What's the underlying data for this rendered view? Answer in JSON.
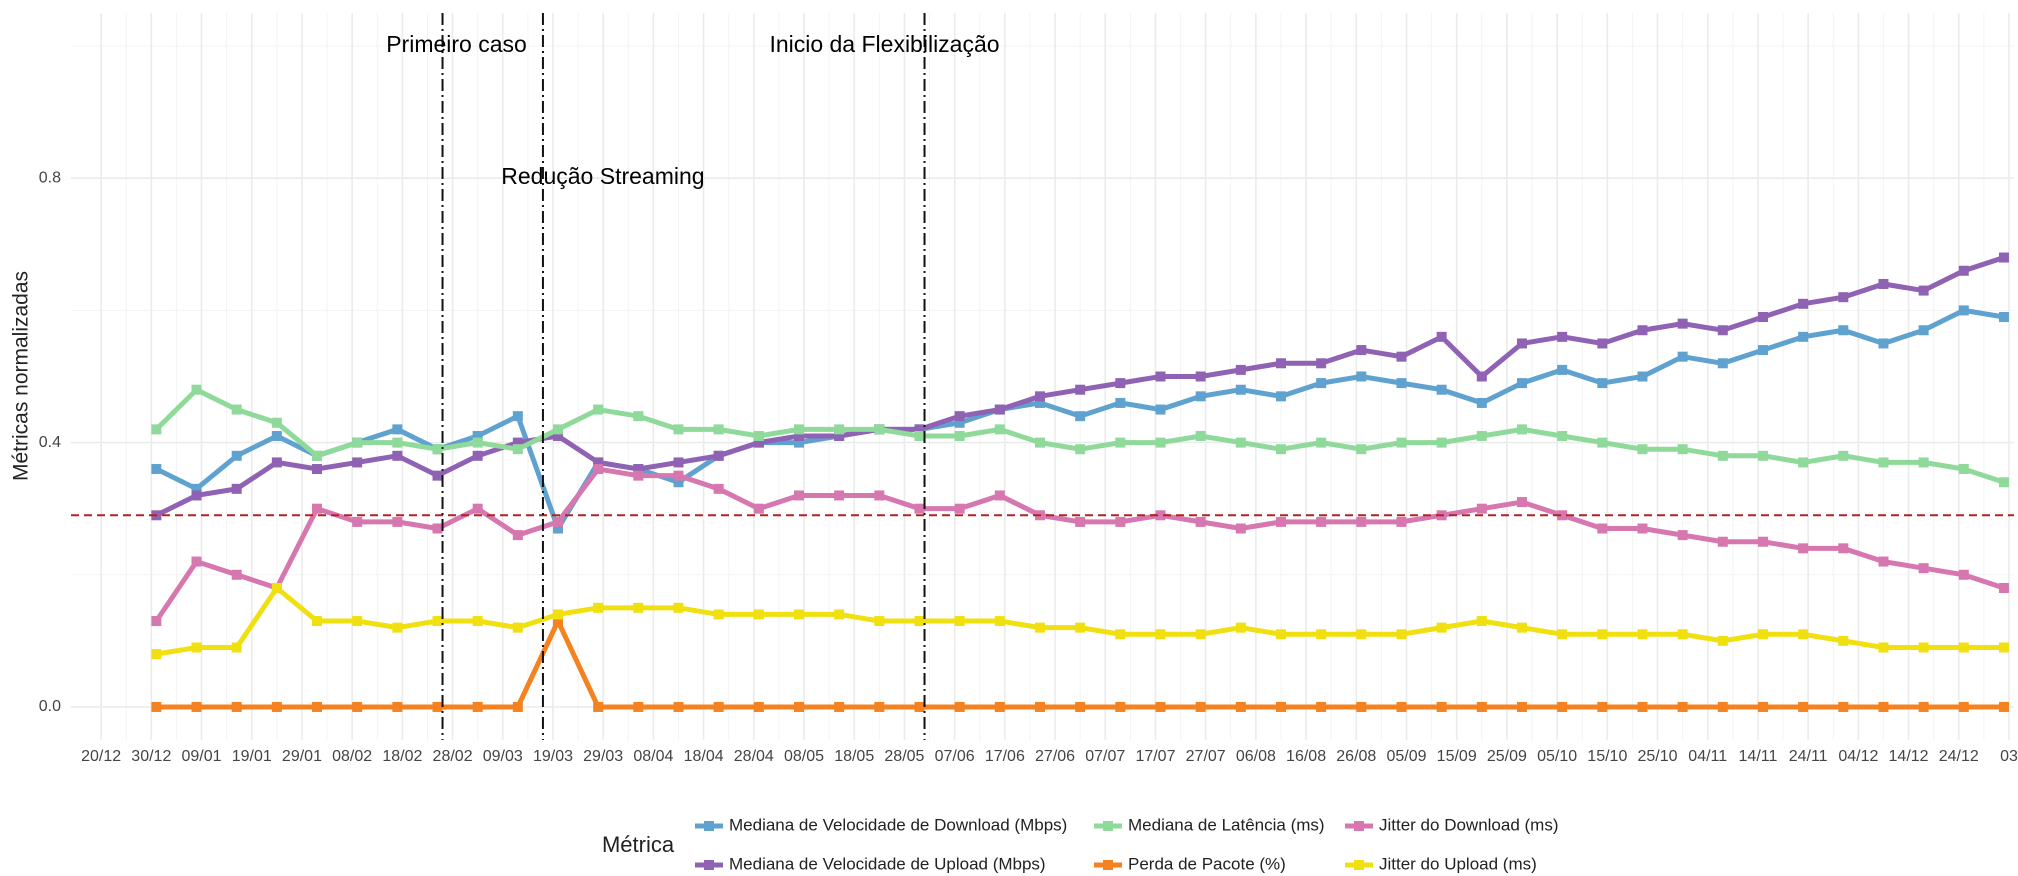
{
  "chart_data": {
    "type": "line",
    "ylabel": "Métricas normalizadas",
    "legend_title": "Métrica",
    "legend_position": "bottom",
    "grid": true,
    "xlim": [
      -6,
      381
    ],
    "ylim": [
      -0.05,
      1.05
    ],
    "yticks": [
      {
        "value": 0,
        "label": "0.0"
      },
      0.4,
      0.8
    ],
    "xticks": [
      {
        "value": 0,
        "label": "20/12"
      },
      {
        "value": 10,
        "label": "30/12"
      },
      {
        "value": 20,
        "label": "09/01"
      },
      {
        "value": 30,
        "label": "19/01"
      },
      {
        "value": 40,
        "label": "29/01"
      },
      {
        "value": 50,
        "label": "08/02"
      },
      {
        "value": 60,
        "label": "18/02"
      },
      {
        "value": 70,
        "label": "28/02"
      },
      {
        "value": 80,
        "label": "09/03"
      },
      {
        "value": 90,
        "label": "19/03"
      },
      {
        "value": 100,
        "label": "29/03"
      },
      {
        "value": 110,
        "label": "08/04"
      },
      {
        "value": 120,
        "label": "18/04"
      },
      {
        "value": 130,
        "label": "28/04"
      },
      {
        "value": 140,
        "label": "08/05"
      },
      {
        "value": 150,
        "label": "18/05"
      },
      {
        "value": 160,
        "label": "28/05"
      },
      {
        "value": 170,
        "label": "07/06"
      },
      {
        "value": 180,
        "label": "17/06"
      },
      {
        "value": 190,
        "label": "27/06"
      },
      {
        "value": 200,
        "label": "07/07"
      },
      {
        "value": 210,
        "label": "17/07"
      },
      {
        "value": 220,
        "label": "27/07"
      },
      {
        "value": 230,
        "label": "06/08"
      },
      {
        "value": 240,
        "label": "16/08"
      },
      {
        "value": 250,
        "label": "26/08"
      },
      {
        "value": 260,
        "label": "05/09"
      },
      {
        "value": 270,
        "label": "15/09"
      },
      {
        "value": 280,
        "label": "25/09"
      },
      {
        "value": 290,
        "label": "05/10"
      },
      {
        "value": 300,
        "label": "15/10"
      },
      {
        "value": 310,
        "label": "25/10"
      },
      {
        "value": 320,
        "label": "04/11"
      },
      {
        "value": 330,
        "label": "14/11"
      },
      {
        "value": 340,
        "label": "24/11"
      },
      {
        "value": 350,
        "label": "04/12"
      },
      {
        "value": 360,
        "label": "14/12"
      },
      {
        "value": 370,
        "label": "24/12"
      },
      {
        "value": 380,
        "label": "03"
      }
    ],
    "vlines": [
      {
        "x": 68,
        "label": "Primeiro caso"
      },
      {
        "x": 88,
        "label": "Redução Streaming"
      },
      {
        "x": 164,
        "label": "Inicio da Flexibilização"
      }
    ],
    "hline": {
      "y": 0.29,
      "color": "#b22222"
    },
    "x": [
      11,
      19,
      27,
      35,
      43,
      51,
      59,
      67,
      75,
      83,
      91,
      99,
      107,
      115,
      123,
      131,
      139,
      147,
      155,
      163,
      171,
      179,
      187,
      195,
      203,
      211,
      219,
      227,
      235,
      243,
      251,
      259,
      267,
      275,
      283,
      291,
      299,
      307,
      315,
      323,
      331,
      339,
      347,
      355,
      363,
      371,
      379
    ],
    "series": [
      {
        "name": "Mediana de Velocidade de Download (Mbps)",
        "color": "#5fa2d0",
        "values": [
          0.36,
          0.33,
          0.38,
          0.41,
          0.38,
          0.4,
          0.42,
          0.39,
          0.41,
          0.44,
          0.27,
          0.37,
          0.36,
          0.34,
          0.38,
          0.4,
          0.4,
          0.41,
          0.42,
          0.42,
          0.43,
          0.45,
          0.46,
          0.44,
          0.46,
          0.45,
          0.47,
          0.48,
          0.47,
          0.49,
          0.5,
          0.49,
          0.48,
          0.46,
          0.49,
          0.51,
          0.49,
          0.5,
          0.53,
          0.52,
          0.54,
          0.56,
          0.57,
          0.55,
          0.57,
          0.6,
          0.59
        ]
      },
      {
        "name": "Mediana de Velocidade de Upload (Mbps)",
        "color": "#8f62b3",
        "values": [
          0.29,
          0.32,
          0.33,
          0.37,
          0.36,
          0.37,
          0.38,
          0.35,
          0.38,
          0.4,
          0.41,
          0.37,
          0.36,
          0.37,
          0.38,
          0.4,
          0.41,
          0.41,
          0.42,
          0.42,
          0.44,
          0.45,
          0.47,
          0.48,
          0.49,
          0.5,
          0.5,
          0.51,
          0.52,
          0.52,
          0.54,
          0.53,
          0.56,
          0.5,
          0.55,
          0.56,
          0.55,
          0.57,
          0.58,
          0.57,
          0.59,
          0.61,
          0.62,
          0.64,
          0.63,
          0.66,
          0.68
        ]
      },
      {
        "name": "Mediana de Latência (ms)",
        "color": "#8fd99a",
        "values": [
          0.42,
          0.48,
          0.45,
          0.43,
          0.38,
          0.4,
          0.4,
          0.39,
          0.4,
          0.39,
          0.42,
          0.45,
          0.44,
          0.42,
          0.42,
          0.41,
          0.42,
          0.42,
          0.42,
          0.41,
          0.41,
          0.42,
          0.4,
          0.39,
          0.4,
          0.4,
          0.41,
          0.4,
          0.39,
          0.4,
          0.39,
          0.4,
          0.4,
          0.41,
          0.42,
          0.41,
          0.4,
          0.39,
          0.39,
          0.38,
          0.38,
          0.37,
          0.38,
          0.37,
          0.37,
          0.36,
          0.34
        ]
      },
      {
        "name": "Perda de Pacote (%)",
        "color": "#f58220",
        "values": [
          0,
          0,
          0,
          0,
          0,
          0,
          0,
          0,
          0,
          0,
          0.13,
          0,
          0,
          0,
          0,
          0,
          0,
          0,
          0,
          0,
          0,
          0,
          0,
          0,
          0,
          0,
          0,
          0,
          0,
          0,
          0,
          0,
          0,
          0,
          0,
          0,
          0,
          0,
          0,
          0,
          0,
          0,
          0,
          0,
          0,
          0,
          0
        ]
      },
      {
        "name": "Jitter do Download (ms)",
        "color": "#d677b0",
        "values": [
          0.13,
          0.22,
          0.2,
          0.18,
          0.3,
          0.28,
          0.28,
          0.27,
          0.3,
          0.26,
          0.28,
          0.36,
          0.35,
          0.35,
          0.33,
          0.3,
          0.32,
          0.32,
          0.32,
          0.3,
          0.3,
          0.32,
          0.29,
          0.28,
          0.28,
          0.29,
          0.28,
          0.27,
          0.28,
          0.28,
          0.28,
          0.28,
          0.29,
          0.3,
          0.31,
          0.29,
          0.27,
          0.27,
          0.26,
          0.25,
          0.25,
          0.24,
          0.24,
          0.22,
          0.21,
          0.2,
          0.18
        ]
      },
      {
        "name": "Jitter do Upload (ms)",
        "color": "#f0e010",
        "values": [
          0.08,
          0.09,
          0.09,
          0.18,
          0.13,
          0.13,
          0.12,
          0.13,
          0.13,
          0.12,
          0.14,
          0.15,
          0.15,
          0.15,
          0.14,
          0.14,
          0.14,
          0.14,
          0.13,
          0.13,
          0.13,
          0.13,
          0.12,
          0.12,
          0.11,
          0.11,
          0.11,
          0.12,
          0.11,
          0.11,
          0.11,
          0.11,
          0.12,
          0.13,
          0.12,
          0.11,
          0.11,
          0.11,
          0.11,
          0.1,
          0.11,
          0.11,
          0.1,
          0.09,
          0.09,
          0.09,
          0.09
        ]
      }
    ]
  }
}
